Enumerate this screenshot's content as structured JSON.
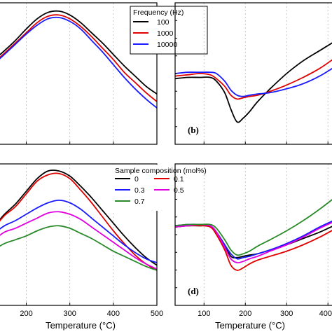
{
  "chart_data": [
    {
      "type": "line",
      "panel_label": "",
      "x": [
        130,
        150,
        175,
        200,
        225,
        250,
        275,
        300,
        325,
        350,
        375,
        400,
        425,
        450,
        475,
        500
      ],
      "xlim": [
        130,
        500
      ],
      "legend": {
        "title": "Frequency (Hz)",
        "placement": "top-right"
      },
      "series": [
        {
          "name": "100",
          "color": "#000000",
          "values": [
            0.62,
            0.68,
            0.76,
            0.85,
            0.93,
            0.98,
            0.99,
            0.96,
            0.9,
            0.82,
            0.74,
            0.65,
            0.56,
            0.48,
            0.4,
            0.34
          ]
        },
        {
          "name": "1000",
          "color": "#e00000",
          "values": [
            0.6,
            0.66,
            0.74,
            0.82,
            0.9,
            0.95,
            0.96,
            0.93,
            0.87,
            0.79,
            0.7,
            0.61,
            0.51,
            0.43,
            0.35,
            0.28
          ]
        },
        {
          "name": "10000",
          "color": "#1a1aff",
          "values": [
            0.59,
            0.65,
            0.73,
            0.81,
            0.88,
            0.93,
            0.94,
            0.91,
            0.85,
            0.76,
            0.67,
            0.57,
            0.47,
            0.38,
            0.3,
            0.23
          ]
        }
      ]
    },
    {
      "type": "line",
      "panel_label": "(b)",
      "x": [
        30,
        60,
        90,
        115,
        130,
        150,
        165,
        180,
        195,
        210,
        230,
        260,
        300,
        340,
        380,
        420
      ],
      "xlim": [
        30,
        420
      ],
      "series": [
        {
          "name": "100",
          "color": "#000000",
          "values": [
            0.46,
            0.47,
            0.47,
            0.47,
            0.44,
            0.35,
            0.22,
            0.12,
            0.15,
            0.2,
            0.28,
            0.38,
            0.5,
            0.6,
            0.68,
            0.76
          ]
        },
        {
          "name": "1000",
          "color": "#e00000",
          "values": [
            0.48,
            0.49,
            0.5,
            0.49,
            0.46,
            0.4,
            0.33,
            0.3,
            0.31,
            0.32,
            0.33,
            0.36,
            0.41,
            0.47,
            0.54,
            0.63
          ]
        },
        {
          "name": "10000",
          "color": "#1a1aff",
          "values": [
            0.5,
            0.51,
            0.51,
            0.51,
            0.5,
            0.44,
            0.37,
            0.33,
            0.32,
            0.33,
            0.34,
            0.35,
            0.38,
            0.42,
            0.48,
            0.56
          ]
        }
      ]
    },
    {
      "type": "line",
      "panel_label": "",
      "x": [
        130,
        150,
        175,
        200,
        225,
        250,
        275,
        300,
        325,
        350,
        375,
        400,
        425,
        450,
        475,
        500
      ],
      "xlim": [
        130,
        500
      ],
      "xticks": [
        200,
        300,
        400,
        500
      ],
      "xlabel": "Temperature (°C)",
      "legend": {
        "title": "Sample composition (mol%)",
        "placement": "top-right"
      },
      "series": [
        {
          "name": "0",
          "color": "#000000",
          "values": [
            0.58,
            0.66,
            0.74,
            0.84,
            0.94,
            1.0,
            1.0,
            0.96,
            0.88,
            0.79,
            0.69,
            0.59,
            0.49,
            0.4,
            0.32,
            0.26
          ]
        },
        {
          "name": "0.1",
          "color": "#e00000",
          "values": [
            0.57,
            0.65,
            0.72,
            0.82,
            0.92,
            0.97,
            0.98,
            0.94,
            0.85,
            0.75,
            0.64,
            0.53,
            0.43,
            0.34,
            0.27,
            0.22
          ]
        },
        {
          "name": "0.3",
          "color": "#1a1aff",
          "values": [
            0.52,
            0.57,
            0.61,
            0.66,
            0.71,
            0.75,
            0.77,
            0.75,
            0.7,
            0.63,
            0.56,
            0.49,
            0.42,
            0.36,
            0.31,
            0.28
          ]
        },
        {
          "name": "0.5",
          "color": "#e000e0",
          "values": [
            0.47,
            0.52,
            0.55,
            0.59,
            0.63,
            0.67,
            0.68,
            0.66,
            0.62,
            0.56,
            0.5,
            0.44,
            0.38,
            0.32,
            0.27,
            0.23
          ]
        },
        {
          "name": "0.7",
          "color": "#2a8a2a",
          "values": [
            0.39,
            0.43,
            0.46,
            0.49,
            0.53,
            0.56,
            0.57,
            0.55,
            0.51,
            0.47,
            0.42,
            0.37,
            0.33,
            0.29,
            0.25,
            0.22
          ]
        }
      ]
    },
    {
      "type": "line",
      "panel_label": "(d)",
      "x": [
        30,
        60,
        90,
        115,
        130,
        150,
        165,
        180,
        195,
        210,
        230,
        260,
        300,
        340,
        380,
        420
      ],
      "xlim": [
        30,
        420
      ],
      "xticks": [
        100,
        200,
        300,
        400
      ],
      "xlabel": "Temperature (°C)",
      "series": [
        {
          "name": "0",
          "color": "#000000",
          "values": [
            0.56,
            0.57,
            0.57,
            0.57,
            0.52,
            0.42,
            0.33,
            0.32,
            0.33,
            0.34,
            0.35,
            0.38,
            0.42,
            0.47,
            0.52,
            0.58
          ]
        },
        {
          "name": "0.1",
          "color": "#e00000",
          "values": [
            0.56,
            0.57,
            0.57,
            0.56,
            0.5,
            0.38,
            0.26,
            0.22,
            0.24,
            0.27,
            0.3,
            0.33,
            0.37,
            0.42,
            0.48,
            0.55
          ]
        },
        {
          "name": "0.3",
          "color": "#1a1aff",
          "values": [
            0.57,
            0.58,
            0.58,
            0.57,
            0.52,
            0.42,
            0.35,
            0.31,
            0.32,
            0.33,
            0.35,
            0.38,
            0.43,
            0.49,
            0.56,
            0.62
          ]
        },
        {
          "name": "0.5",
          "color": "#e000e0",
          "values": [
            0.56,
            0.57,
            0.58,
            0.57,
            0.52,
            0.4,
            0.31,
            0.28,
            0.29,
            0.31,
            0.33,
            0.37,
            0.42,
            0.48,
            0.55,
            0.61
          ]
        },
        {
          "name": "0.7",
          "color": "#2a8a2a",
          "values": [
            0.57,
            0.58,
            0.58,
            0.58,
            0.55,
            0.46,
            0.38,
            0.34,
            0.35,
            0.37,
            0.41,
            0.46,
            0.53,
            0.61,
            0.7,
            0.8
          ]
        }
      ]
    }
  ]
}
